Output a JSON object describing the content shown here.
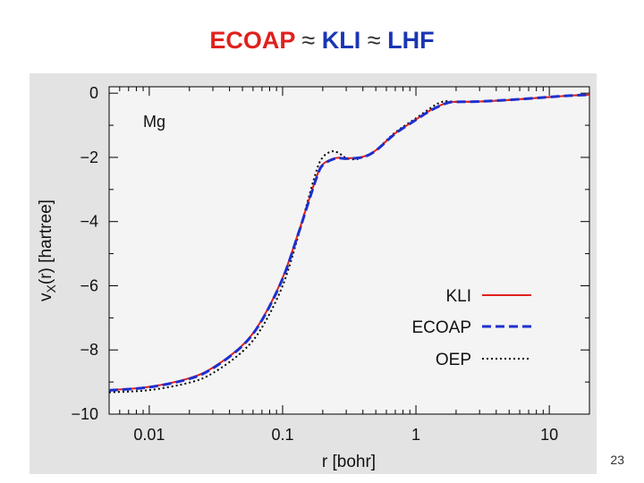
{
  "title": {
    "part1": "ECOAP",
    "approx1": "≈",
    "part2": "KLI",
    "approx2": "≈",
    "part3": "LHF"
  },
  "slide_number": "23",
  "colors": {
    "ecoap_title": "#e0201c",
    "kli_title": "#1a35b5",
    "plot_bg": "#f4f4f4",
    "frame_bg": "#e3e3e3",
    "kli_line": "#e0201c",
    "ecoap_line": "#1d2fd0",
    "oep_line": "#000000"
  },
  "chart_data": {
    "type": "line",
    "element_label": "Mg",
    "xlabel": "r  [bohr]",
    "ylabel_main": "v",
    "ylabel_sub": "X",
    "ylabel_rest": "(r)  [hartree]",
    "xscale": "log",
    "xlim": [
      0.005,
      20
    ],
    "ylim": [
      -10,
      0.2
    ],
    "xticks": [
      0.01,
      0.1,
      1,
      10
    ],
    "xtick_labels": [
      "0.01",
      "0.1",
      "1",
      "10"
    ],
    "yticks": [
      0,
      -2,
      -4,
      -6,
      -8,
      -10
    ],
    "ytick_labels": [
      "0",
      "−2",
      "−4",
      "−6",
      "−8",
      "−10"
    ],
    "legend_position": "bottom-right",
    "series": [
      {
        "name": "KLI",
        "style": "solid",
        "x": [
          0.005,
          0.01,
          0.02,
          0.03,
          0.05,
          0.07,
          0.1,
          0.13,
          0.15,
          0.18,
          0.2,
          0.25,
          0.3,
          0.4,
          0.5,
          0.7,
          1.0,
          1.3,
          1.7,
          2.0,
          3.0,
          5.0,
          10.0,
          15.0,
          20.0
        ],
        "y": [
          -9.25,
          -9.15,
          -8.88,
          -8.55,
          -7.85,
          -7.05,
          -5.75,
          -4.4,
          -3.6,
          -2.6,
          -2.22,
          -2.02,
          -2.03,
          -1.98,
          -1.78,
          -1.25,
          -0.82,
          -0.52,
          -0.3,
          -0.27,
          -0.26,
          -0.21,
          -0.12,
          -0.07,
          -0.05
        ]
      },
      {
        "name": "ECOAP",
        "style": "dashed",
        "x": [
          0.005,
          0.01,
          0.02,
          0.03,
          0.05,
          0.07,
          0.1,
          0.13,
          0.15,
          0.18,
          0.2,
          0.25,
          0.3,
          0.4,
          0.5,
          0.7,
          1.0,
          1.3,
          1.7,
          2.0,
          3.0,
          5.0,
          10.0,
          15.0,
          20.0
        ],
        "y": [
          -9.26,
          -9.16,
          -8.9,
          -8.57,
          -7.87,
          -7.07,
          -5.78,
          -4.43,
          -3.63,
          -2.63,
          -2.24,
          -2.03,
          -2.04,
          -1.99,
          -1.79,
          -1.26,
          -0.83,
          -0.53,
          -0.31,
          -0.27,
          -0.26,
          -0.21,
          -0.12,
          -0.07,
          -0.05
        ]
      },
      {
        "name": "OEP",
        "style": "dotted",
        "x": [
          0.005,
          0.01,
          0.02,
          0.03,
          0.05,
          0.07,
          0.1,
          0.13,
          0.15,
          0.18,
          0.2,
          0.23,
          0.26,
          0.3,
          0.35,
          0.4,
          0.5,
          0.7,
          1.0,
          1.3,
          1.5,
          1.7,
          2.0,
          3.0,
          5.0,
          10.0,
          15.0,
          20.0
        ],
        "y": [
          -9.32,
          -9.25,
          -9.02,
          -8.72,
          -8.05,
          -7.3,
          -6.0,
          -4.5,
          -3.55,
          -2.4,
          -2.0,
          -1.82,
          -1.85,
          -2.02,
          -2.06,
          -1.99,
          -1.78,
          -1.22,
          -0.78,
          -0.45,
          -0.3,
          -0.25,
          -0.27,
          -0.26,
          -0.21,
          -0.12,
          -0.07,
          -0.05
        ]
      }
    ]
  }
}
